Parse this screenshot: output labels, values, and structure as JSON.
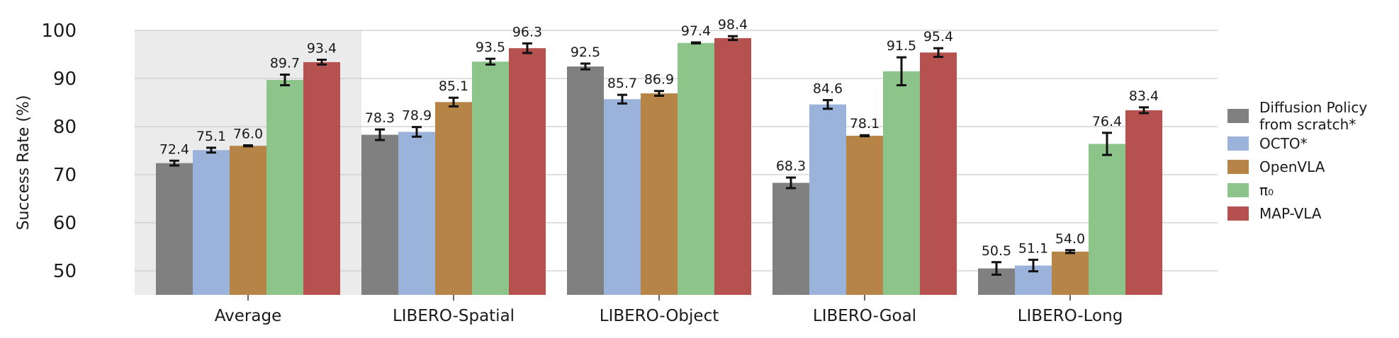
{
  "chart_data": {
    "type": "bar",
    "ylabel": "Success Rate (%)",
    "xlabel": "",
    "ylim": [
      45,
      100
    ],
    "yticks": [
      50,
      60,
      70,
      80,
      90,
      100
    ],
    "grid": "horizontal",
    "highlighted_category": "Average",
    "categories": [
      "Average",
      "LIBERO-Spatial",
      "LIBERO-Object",
      "LIBERO-Goal",
      "LIBERO-Long"
    ],
    "series": [
      {
        "name": "Diffusion Policy from scratch*",
        "legend_lines": [
          "Diffusion Policy",
          "from scratch*"
        ],
        "color": "#808080",
        "values": [
          72.4,
          78.3,
          92.5,
          68.3,
          50.5
        ],
        "labels": [
          "72.4",
          "78.3",
          "92.5",
          "68.3",
          "50.5"
        ],
        "errors": [
          0.5,
          1.1,
          0.6,
          1.1,
          1.3
        ]
      },
      {
        "name": "OCTO*",
        "legend_lines": [
          "OCTO*"
        ],
        "color": "#9bb2db",
        "values": [
          75.1,
          78.9,
          85.7,
          84.6,
          51.1
        ],
        "labels": [
          "75.1",
          "78.9",
          "85.7",
          "84.6",
          "51.1"
        ],
        "errors": [
          0.5,
          1.0,
          0.9,
          0.9,
          1.2
        ]
      },
      {
        "name": "OpenVLA",
        "legend_lines": [
          "OpenVLA"
        ],
        "color": "#b58446",
        "values": [
          76.0,
          85.1,
          86.9,
          78.1,
          54.0
        ],
        "labels": [
          "76.0",
          "85.1",
          "86.9",
          "78.1",
          "54.0"
        ],
        "errors": [
          0.1,
          0.9,
          0.5,
          0.1,
          0.3
        ]
      },
      {
        "name": "π0",
        "legend_lines": [
          "π₀"
        ],
        "color": "#8cc48a",
        "values": [
          89.7,
          93.5,
          97.4,
          91.5,
          76.4
        ],
        "labels": [
          "89.7",
          "93.5",
          "97.4",
          "91.5",
          "76.4"
        ],
        "errors": [
          1.1,
          0.6,
          0.1,
          2.9,
          2.3
        ]
      },
      {
        "name": "MAP-VLA",
        "legend_lines": [
          "MAP-VLA"
        ],
        "color": "#b5514e",
        "values": [
          93.4,
          96.3,
          98.4,
          95.4,
          83.4
        ],
        "labels": [
          "93.4",
          "96.3",
          "98.4",
          "95.4",
          "83.4"
        ],
        "errors": [
          0.5,
          1.0,
          0.4,
          0.9,
          0.6
        ]
      }
    ],
    "legend_position": "right"
  }
}
